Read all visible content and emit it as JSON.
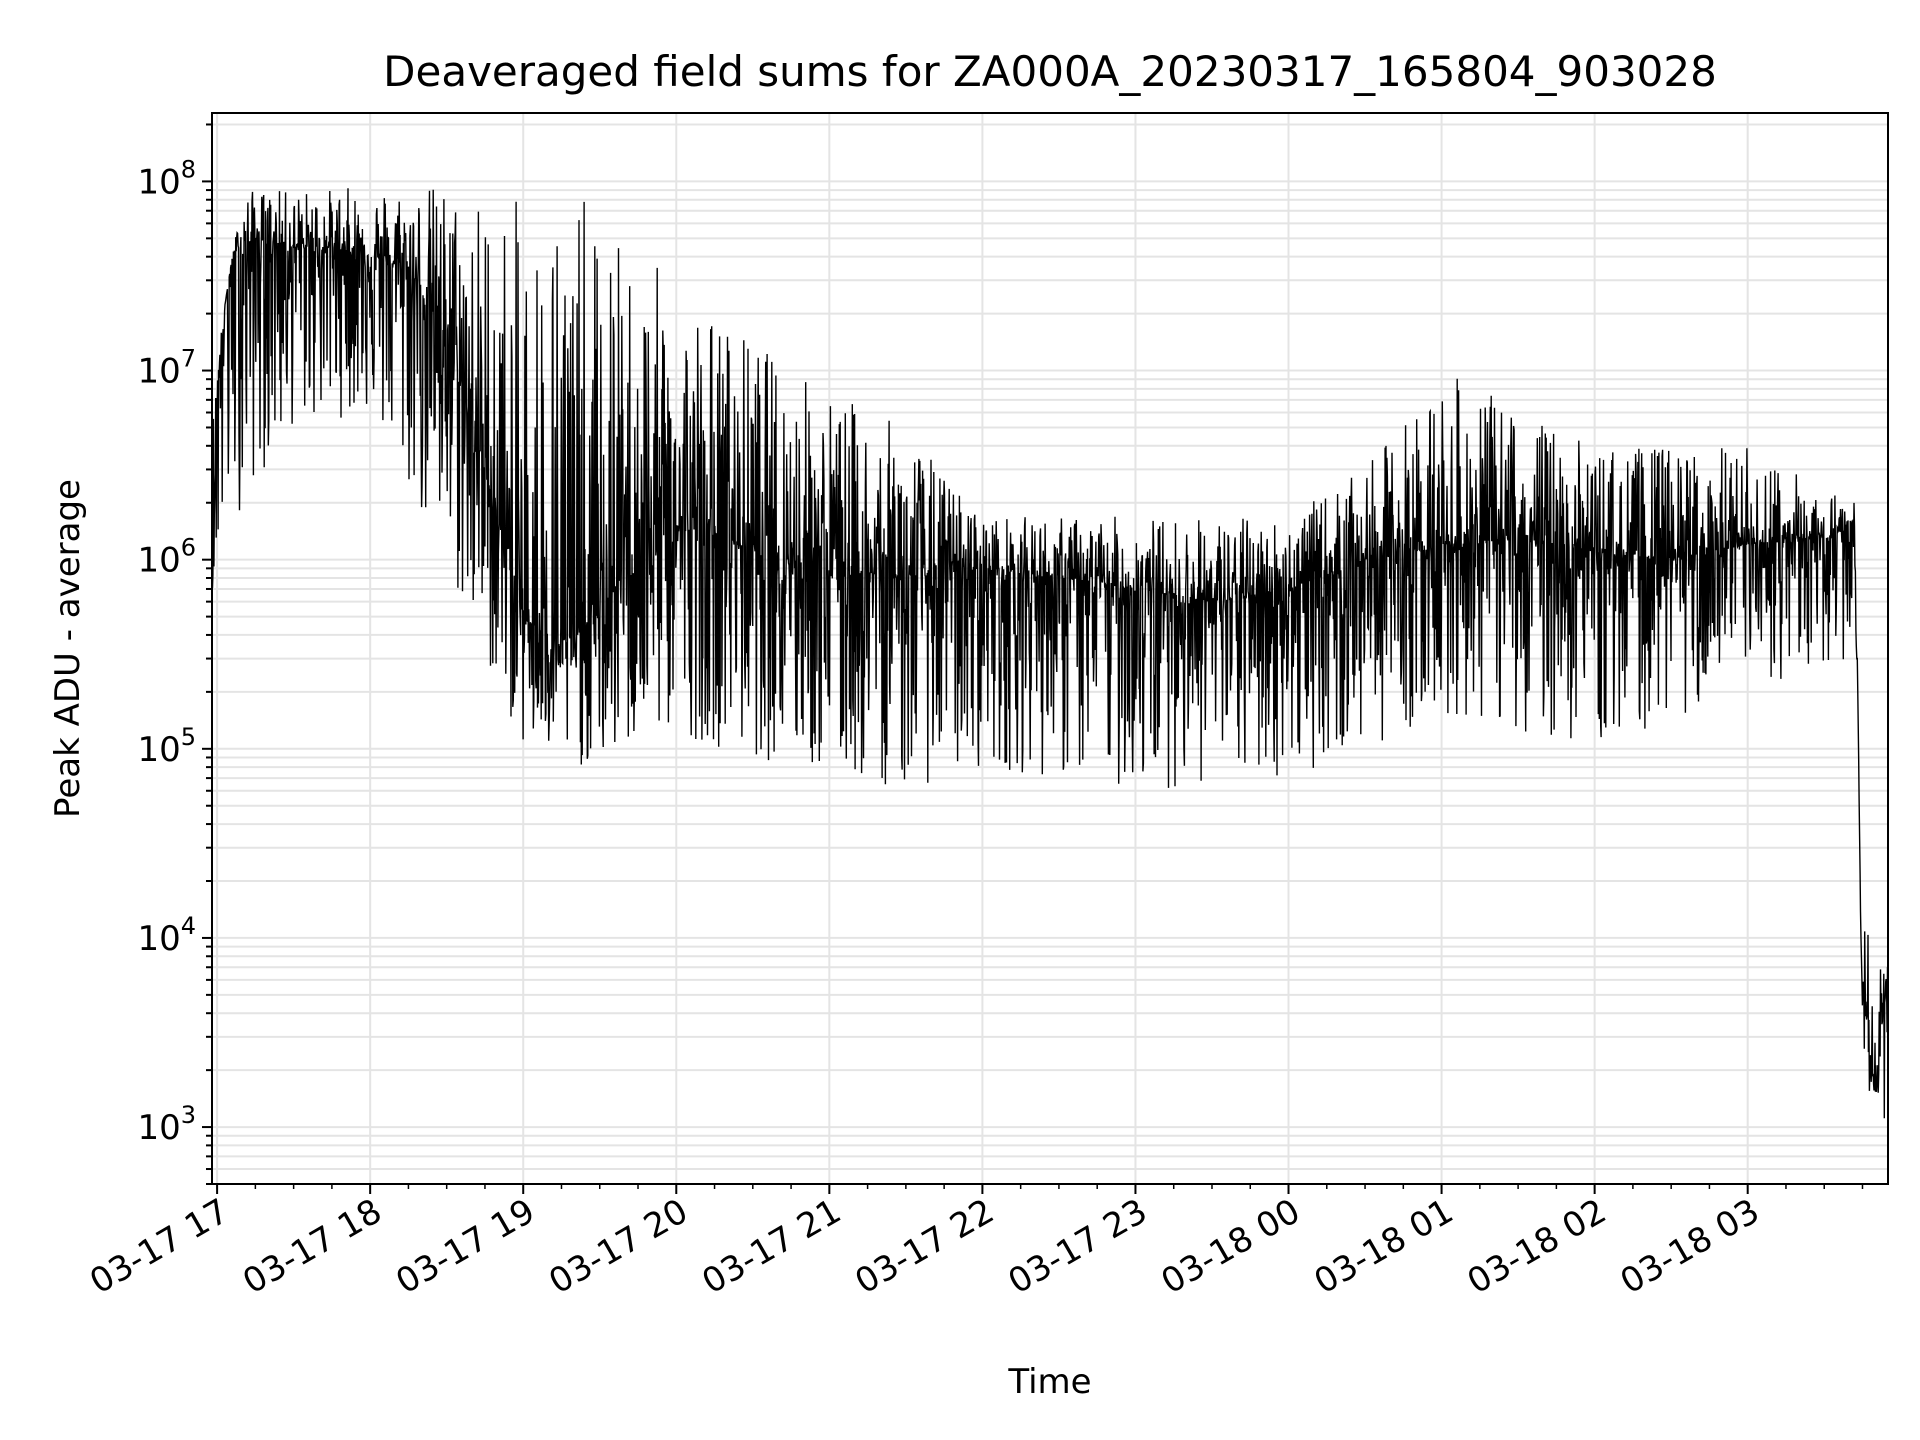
{
  "chart_data": {
    "type": "line",
    "title": "Deaveraged field sums for ZA000A_20230317_165804_903028",
    "xlabel": "Time",
    "ylabel": "Peak ADU - average",
    "y_scale": "log",
    "ylim": [
      500,
      230000000
    ],
    "xlim": [
      "2023-03-17 16:58",
      "2023-03-18 03:55"
    ],
    "grid": true,
    "line_color": "#000000",
    "x_tick_labels": [
      "03-17 17",
      "03-17 18",
      "03-17 19",
      "03-17 20",
      "03-17 21",
      "03-17 22",
      "03-17 23",
      "03-18 00",
      "03-18 01",
      "03-18 02",
      "03-18 03"
    ],
    "x_tick_values": [
      "2023-03-17 17:00",
      "2023-03-17 18:00",
      "2023-03-17 19:00",
      "2023-03-17 20:00",
      "2023-03-17 21:00",
      "2023-03-17 22:00",
      "2023-03-17 23:00",
      "2023-03-18 00:00",
      "2023-03-18 01:00",
      "2023-03-18 02:00",
      "2023-03-18 03:00"
    ],
    "y_ticks": [
      {
        "value": 1000,
        "base": "10",
        "exp": "3"
      },
      {
        "value": 10000,
        "base": "10",
        "exp": "4"
      },
      {
        "value": 100000,
        "base": "10",
        "exp": "5"
      },
      {
        "value": 1000000,
        "base": "10",
        "exp": "6"
      },
      {
        "value": 10000000,
        "base": "10",
        "exp": "7"
      },
      {
        "value": 100000000,
        "base": "10",
        "exp": "8"
      }
    ],
    "series": [
      {
        "values": [
          [
            "2023-03-17 16:58",
            600000
          ],
          [
            "2023-03-17 17:00",
            8000000
          ],
          [
            "2023-03-17 17:05",
            40000000
          ],
          [
            "2023-03-17 17:15",
            50000000
          ],
          [
            "2023-03-17 17:30",
            45000000
          ],
          [
            "2023-03-17 17:45",
            45000000
          ],
          [
            "2023-03-17 18:00",
            40000000
          ],
          [
            "2023-03-17 18:15",
            35000000
          ],
          [
            "2023-03-17 18:30",
            15000000
          ],
          [
            "2023-03-17 18:45",
            3000000
          ],
          [
            "2023-03-17 19:00",
            500000
          ],
          [
            "2023-03-17 19:15",
            350000
          ],
          [
            "2023-03-17 19:30",
            500000
          ],
          [
            "2023-03-17 19:45",
            1200000
          ],
          [
            "2023-03-17 20:00",
            1500000
          ],
          [
            "2023-03-17 20:30",
            1200000
          ],
          [
            "2023-03-17 21:00",
            900000
          ],
          [
            "2023-03-17 21:30",
            800000
          ],
          [
            "2023-03-17 22:00",
            900000
          ],
          [
            "2023-03-17 22:30",
            800000
          ],
          [
            "2023-03-17 23:00",
            700000
          ],
          [
            "2023-03-17 23:30",
            600000
          ],
          [
            "2023-03-18 00:00",
            700000
          ],
          [
            "2023-03-18 00:30",
            1000000
          ],
          [
            "2023-03-18 01:00",
            1200000
          ],
          [
            "2023-03-18 01:30",
            1300000
          ],
          [
            "2023-03-18 02:00",
            1100000
          ],
          [
            "2023-03-18 02:30",
            1000000
          ],
          [
            "2023-03-18 03:00",
            1200000
          ],
          [
            "2023-03-18 03:30",
            1300000
          ],
          [
            "2023-03-18 03:42",
            1500000
          ],
          [
            "2023-03-18 03:44",
            10000
          ],
          [
            "2023-03-18 03:47",
            3000
          ],
          [
            "2023-03-18 03:50",
            1500
          ],
          [
            "2023-03-18 03:53",
            4000
          ],
          [
            "2023-03-18 03:55",
            7000
          ]
        ],
        "envelope": [
          [
            "2023-03-17 16:58",
            700000,
            8000000
          ],
          [
            "2023-03-17 17:10",
            2000000,
            90000000
          ],
          [
            "2023-03-17 17:30",
            5000000,
            90000000
          ],
          [
            "2023-03-17 18:00",
            6000000,
            95000000
          ],
          [
            "2023-03-17 18:30",
            800000,
            100000000
          ],
          [
            "2023-03-17 19:00",
            100000,
            80000000
          ],
          [
            "2023-03-17 19:15",
            80000,
            130000000
          ],
          [
            "2023-03-17 19:30",
            80000,
            60000000
          ],
          [
            "2023-03-17 20:00",
            120000,
            30000000
          ],
          [
            "2023-03-17 20:30",
            90000,
            15000000
          ],
          [
            "2023-03-17 21:00",
            70000,
            8000000
          ],
          [
            "2023-03-17 21:30",
            60000,
            5000000
          ],
          [
            "2023-03-17 22:00",
            80000,
            1700000
          ],
          [
            "2023-03-17 23:00",
            60000,
            1700000
          ],
          [
            "2023-03-18 00:00",
            70000,
            1700000
          ],
          [
            "2023-03-18 00:30",
            100000,
            3000000
          ],
          [
            "2023-03-18 01:00",
            150000,
            10000000
          ],
          [
            "2023-03-18 02:00",
            100000,
            4000000
          ],
          [
            "2023-03-18 03:00",
            200000,
            4000000
          ],
          [
            "2023-03-18 03:43",
            300000,
            2000000
          ],
          [
            "2023-03-18 03:45",
            2000,
            20000
          ],
          [
            "2023-03-18 03:50",
            900,
            6000
          ],
          [
            "2023-03-18 03:55",
            1000,
            9000
          ]
        ]
      }
    ]
  }
}
